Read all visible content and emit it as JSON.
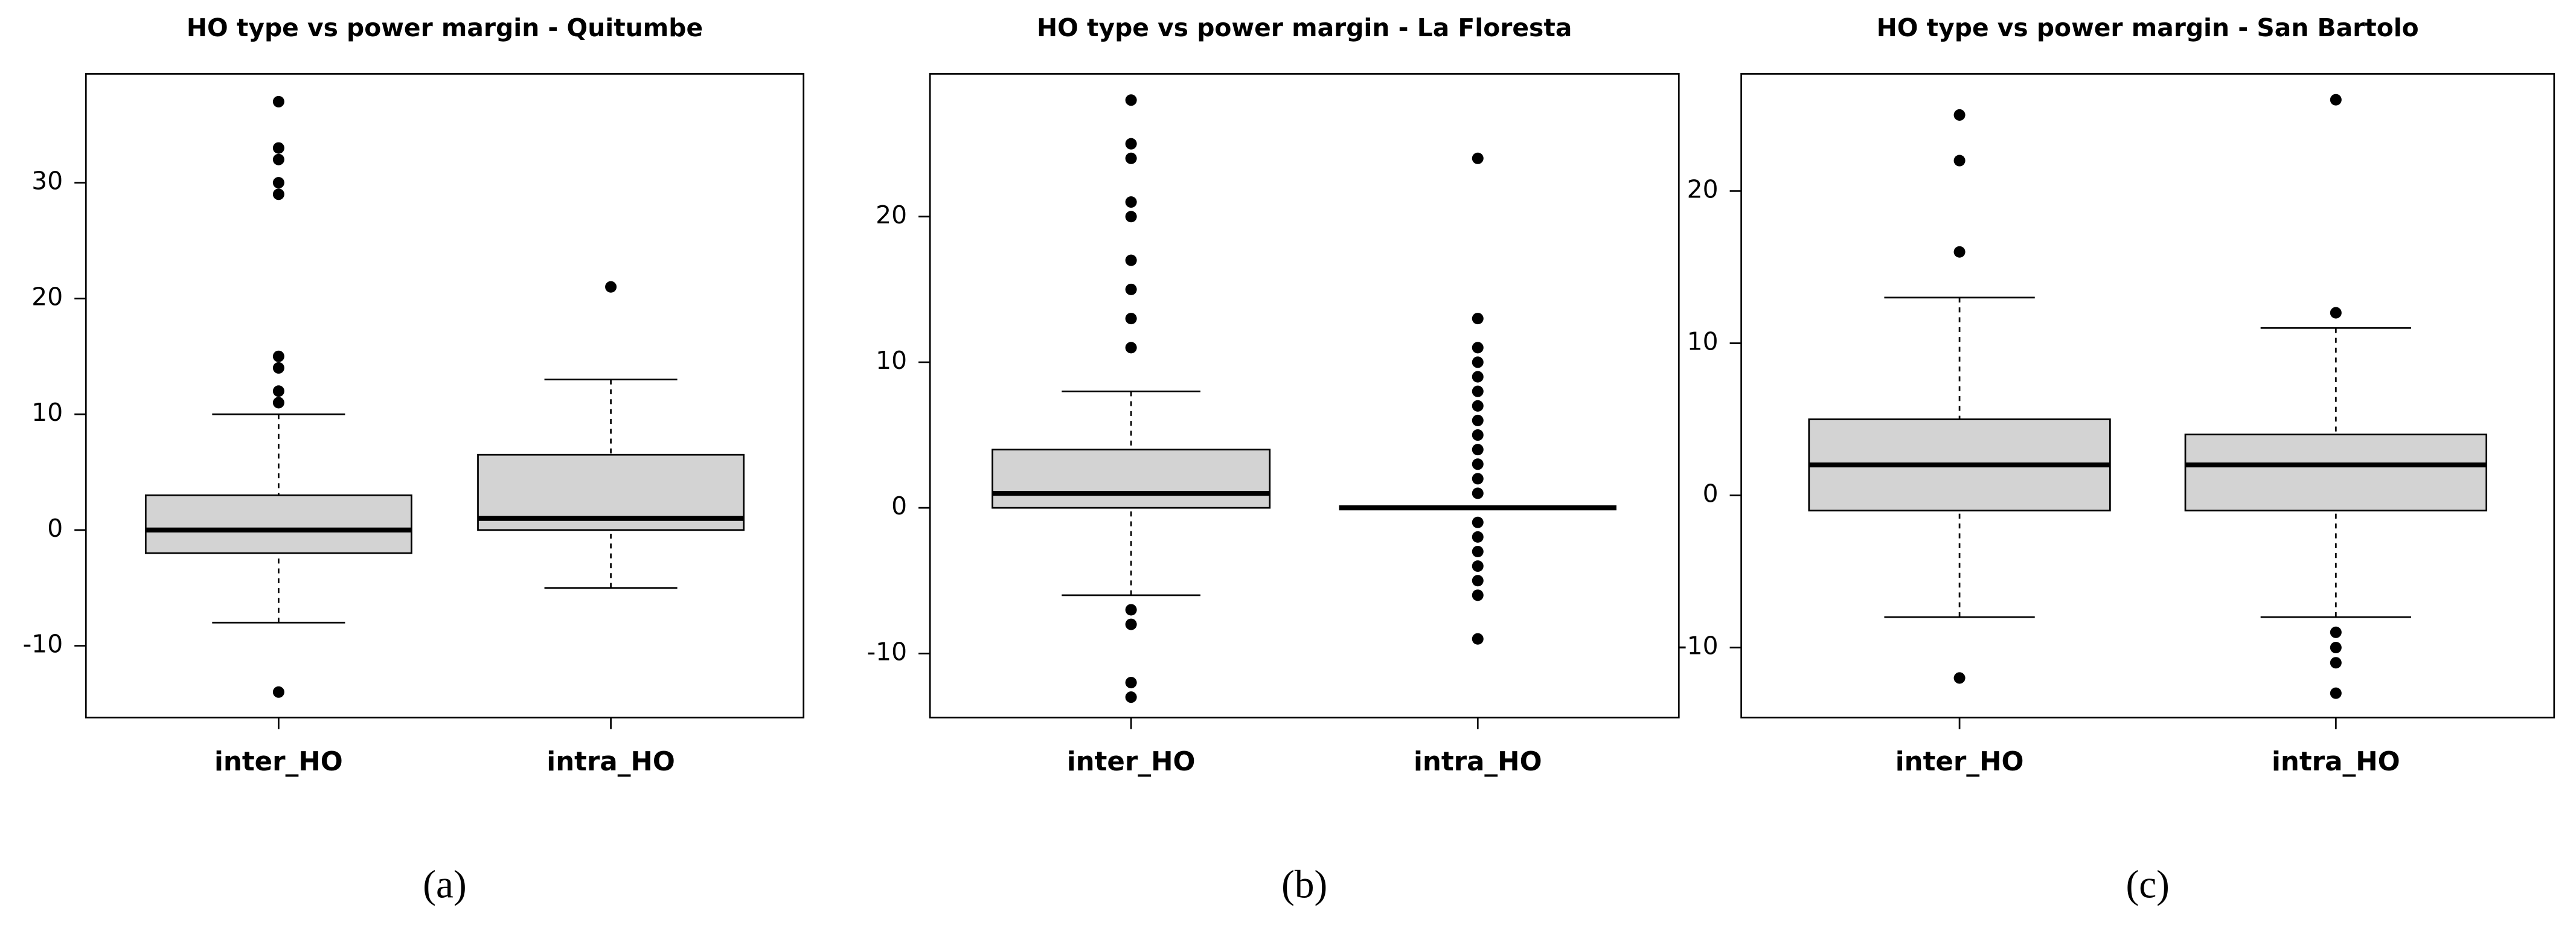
{
  "chart_data": [
    {
      "type": "box",
      "title": "HO type vs power margin - Quitumbe",
      "caption": "(a)",
      "categories": [
        "inter_HO",
        "intra_HO"
      ],
      "boxes": [
        {
          "whislo": -8,
          "q1": -2,
          "med": 0,
          "q3": 3,
          "whishi": 10,
          "fliers": [
            37,
            33,
            32,
            30,
            29,
            15,
            14,
            12,
            11,
            -14
          ]
        },
        {
          "whislo": -5,
          "q1": 0,
          "med": 1,
          "q3": 6.5,
          "whishi": 13,
          "fliers": [
            21
          ]
        }
      ],
      "ylim": [
        -16.2,
        39.4
      ],
      "yticks": [
        -10,
        0,
        10,
        20,
        30
      ],
      "box_color": "#d3d3d3"
    },
    {
      "type": "box",
      "title": "HO type vs power margin - La Floresta",
      "caption": "(b)",
      "categories": [
        "inter_HO",
        "intra_HO"
      ],
      "boxes": [
        {
          "whislo": -6,
          "q1": 0,
          "med": 1,
          "q3": 4,
          "whishi": 8,
          "fliers": [
            28,
            25,
            24,
            21,
            20,
            17,
            15,
            13,
            11,
            -7,
            -8,
            -12,
            -13
          ]
        },
        {
          "whislo": 0,
          "q1": 0,
          "med": 0,
          "q3": 0,
          "whishi": 0,
          "fliers": [
            24,
            13,
            11,
            10,
            9,
            8,
            7,
            6,
            5,
            4,
            3,
            2,
            1,
            -1,
            -2,
            -3,
            -4,
            -5,
            -6,
            -9
          ]
        }
      ],
      "ylim": [
        -14.4,
        29.8
      ],
      "yticks": [
        -10,
        0,
        10,
        20
      ],
      "box_color": "#d3d3d3"
    },
    {
      "type": "box",
      "title": "HO type vs power margin - San Bartolo",
      "caption": "(c)",
      "categories": [
        "inter_HO",
        "intra_HO"
      ],
      "boxes": [
        {
          "whislo": -8,
          "q1": -1,
          "med": 2,
          "q3": 5,
          "whishi": 13,
          "fliers": [
            25,
            22,
            16,
            -12
          ]
        },
        {
          "whislo": -8,
          "q1": -1,
          "med": 2,
          "q3": 4,
          "whishi": 11,
          "fliers": [
            26,
            12,
            -9,
            -10,
            -11,
            -13
          ]
        }
      ],
      "ylim": [
        -14.6,
        27.7
      ],
      "yticks": [
        -10,
        0,
        10,
        20
      ],
      "box_color": "#d3d3d3"
    }
  ]
}
